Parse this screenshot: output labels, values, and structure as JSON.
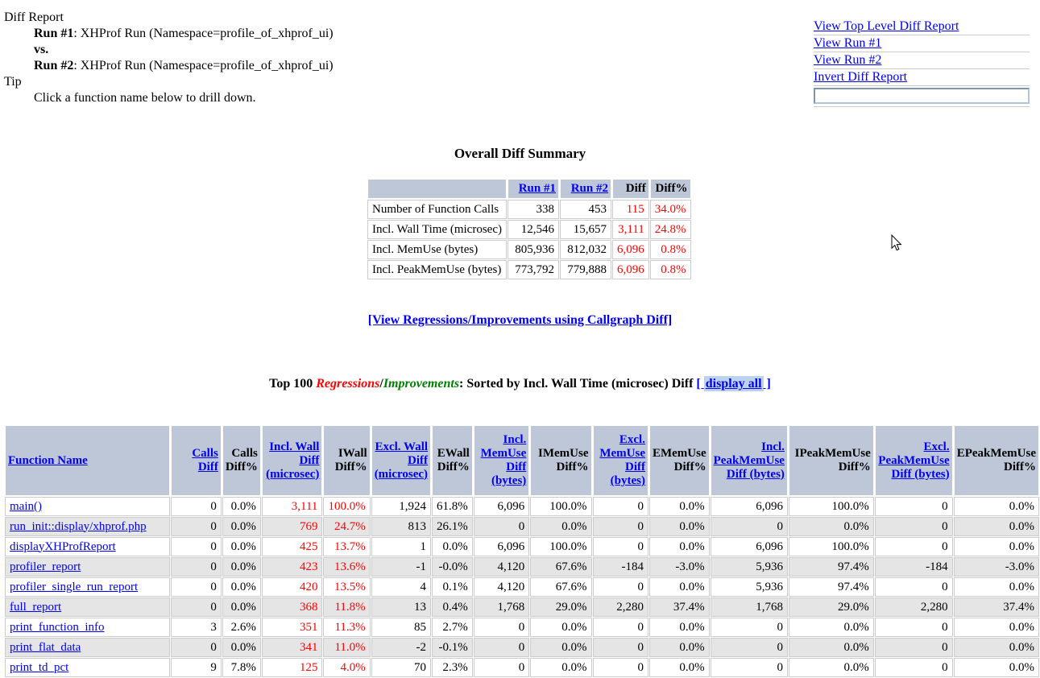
{
  "colors": {
    "table_header_bg": "#BDC7D8",
    "row_stripe": "#E5E5E5",
    "link_blue": "#0000EE",
    "regression_red": "#FF0000",
    "improvement_green": "#008000",
    "display_all_highlight": "#BDD2EE"
  },
  "info": {
    "title": "Diff Report",
    "run1_label": "Run #1",
    "run1_desc": ": XHProf Run (Namespace=profile_of_xhprof_ui)",
    "vs_label": "vs.",
    "run2_label": "Run #2",
    "run2_desc": ": XHProf Run (Namespace=profile_of_xhprof_ui)",
    "tip_label": "Tip",
    "tip_text": "Click a function name below to drill down."
  },
  "nav": {
    "links": [
      "View Top Level Diff Report",
      "View Run #1",
      "View Run #2",
      "Invert Diff Report"
    ],
    "input_value": ""
  },
  "summary": {
    "title": "Overall Diff Summary",
    "col_headers": [
      {
        "label": "Run #1",
        "link": true
      },
      {
        "label": "Run #2",
        "link": true
      },
      {
        "label": "Diff",
        "link": false
      },
      {
        "label": "Diff%",
        "link": false
      }
    ],
    "rows": [
      {
        "label": "Number of Function Calls",
        "run1": "338",
        "run2": "453",
        "diff": "115",
        "diff_pct": "34.0%"
      },
      {
        "label": "Incl. Wall Time (microsec)",
        "run1": "12,546",
        "run2": "15,657",
        "diff": "3,111",
        "diff_pct": "24.8%"
      },
      {
        "label": "Incl. MemUse (bytes)",
        "run1": "805,936",
        "run2": "812,032",
        "diff": "6,096",
        "diff_pct": "0.8%"
      },
      {
        "label": "Incl. PeakMemUse (bytes)",
        "run1": "773,792",
        "run2": "779,888",
        "diff": "6,096",
        "diff_pct": "0.8%"
      }
    ]
  },
  "callgraph_link": "[View Regressions/Improvements using Callgraph Diff]",
  "top100": {
    "prefix": "Top 100 ",
    "regressions": "Regressions",
    "separator": "/",
    "improvements": "Improvements",
    "suffix": ": Sorted by Incl. Wall Time (microsec) Diff ",
    "bracket_open": "[ ",
    "display_all": "display all",
    "bracket_close": " ]"
  },
  "functions_table": {
    "headers": [
      {
        "label": "Function Name",
        "link": true,
        "align": "left",
        "values_red": false
      },
      {
        "label": "Calls Diff",
        "link": true,
        "align": "right",
        "values_red": false
      },
      {
        "label": "Calls Diff%",
        "link": false,
        "align": "right",
        "values_red": false
      },
      {
        "label": "Incl. Wall Diff (microsec)",
        "link": true,
        "align": "right",
        "values_red": true
      },
      {
        "label": "IWall Diff%",
        "link": false,
        "align": "right",
        "values_red": true
      },
      {
        "label": "Excl. Wall Diff (microsec)",
        "link": true,
        "align": "right",
        "values_red": false
      },
      {
        "label": "EWall Diff%",
        "link": false,
        "align": "right",
        "values_red": false
      },
      {
        "label": "Incl. MemUse Diff (bytes)",
        "link": true,
        "align": "right",
        "values_red": false
      },
      {
        "label": "IMemUse Diff%",
        "link": false,
        "align": "right",
        "values_red": false
      },
      {
        "label": "Excl. MemUse Diff (bytes)",
        "link": true,
        "align": "right",
        "values_red": false
      },
      {
        "label": "EMemUse Diff%",
        "link": false,
        "align": "right",
        "values_red": false
      },
      {
        "label": "Incl. PeakMemUse Diff (bytes)",
        "link": true,
        "align": "right",
        "values_red": false
      },
      {
        "label": "IPeakMemUse Diff%",
        "link": false,
        "align": "right",
        "values_red": false
      },
      {
        "label": "Excl. PeakMemUse Diff (bytes)",
        "link": true,
        "align": "right",
        "values_red": false
      },
      {
        "label": "EPeakMemUse Diff%",
        "link": false,
        "align": "right",
        "values_red": false
      }
    ],
    "rows": [
      {
        "function": "main()",
        "values": [
          "0",
          "0.0%",
          "3,111",
          "100.0%",
          "1,924",
          "61.8%",
          "6,096",
          "100.0%",
          "0",
          "0.0%",
          "6,096",
          "100.0%",
          "0",
          "0.0%"
        ]
      },
      {
        "function": "run_init::display/xhprof.php",
        "values": [
          "0",
          "0.0%",
          "769",
          "24.7%",
          "813",
          "26.1%",
          "0",
          "0.0%",
          "0",
          "0.0%",
          "0",
          "0.0%",
          "0",
          "0.0%"
        ]
      },
      {
        "function": "displayXHProfReport",
        "values": [
          "0",
          "0.0%",
          "425",
          "13.7%",
          "1",
          "0.0%",
          "6,096",
          "100.0%",
          "0",
          "0.0%",
          "6,096",
          "100.0%",
          "0",
          "0.0%"
        ]
      },
      {
        "function": "profiler_report",
        "values": [
          "0",
          "0.0%",
          "423",
          "13.6%",
          "-1",
          "-0.0%",
          "4,120",
          "67.6%",
          "-184",
          "-3.0%",
          "5,936",
          "97.4%",
          "-184",
          "-3.0%"
        ]
      },
      {
        "function": "profiler_single_run_report",
        "values": [
          "0",
          "0.0%",
          "420",
          "13.5%",
          "4",
          "0.1%",
          "4,120",
          "67.6%",
          "0",
          "0.0%",
          "5,936",
          "97.4%",
          "0",
          "0.0%"
        ]
      },
      {
        "function": "full_report",
        "values": [
          "0",
          "0.0%",
          "368",
          "11.8%",
          "13",
          "0.4%",
          "1,768",
          "29.0%",
          "2,280",
          "37.4%",
          "1,768",
          "29.0%",
          "2,280",
          "37.4%"
        ]
      },
      {
        "function": "print_function_info",
        "values": [
          "3",
          "2.6%",
          "351",
          "11.3%",
          "85",
          "2.7%",
          "0",
          "0.0%",
          "0",
          "0.0%",
          "0",
          "0.0%",
          "0",
          "0.0%"
        ]
      },
      {
        "function": "print_flat_data",
        "values": [
          "0",
          "0.0%",
          "341",
          "11.0%",
          "-2",
          "-0.1%",
          "0",
          "0.0%",
          "0",
          "0.0%",
          "0",
          "0.0%",
          "0",
          "0.0%"
        ]
      },
      {
        "function": "print_td_pct",
        "values": [
          "9",
          "7.8%",
          "125",
          "4.0%",
          "70",
          "2.3%",
          "0",
          "0.0%",
          "0",
          "0.0%",
          "0",
          "0.0%",
          "0",
          "0.0%"
        ]
      }
    ]
  }
}
